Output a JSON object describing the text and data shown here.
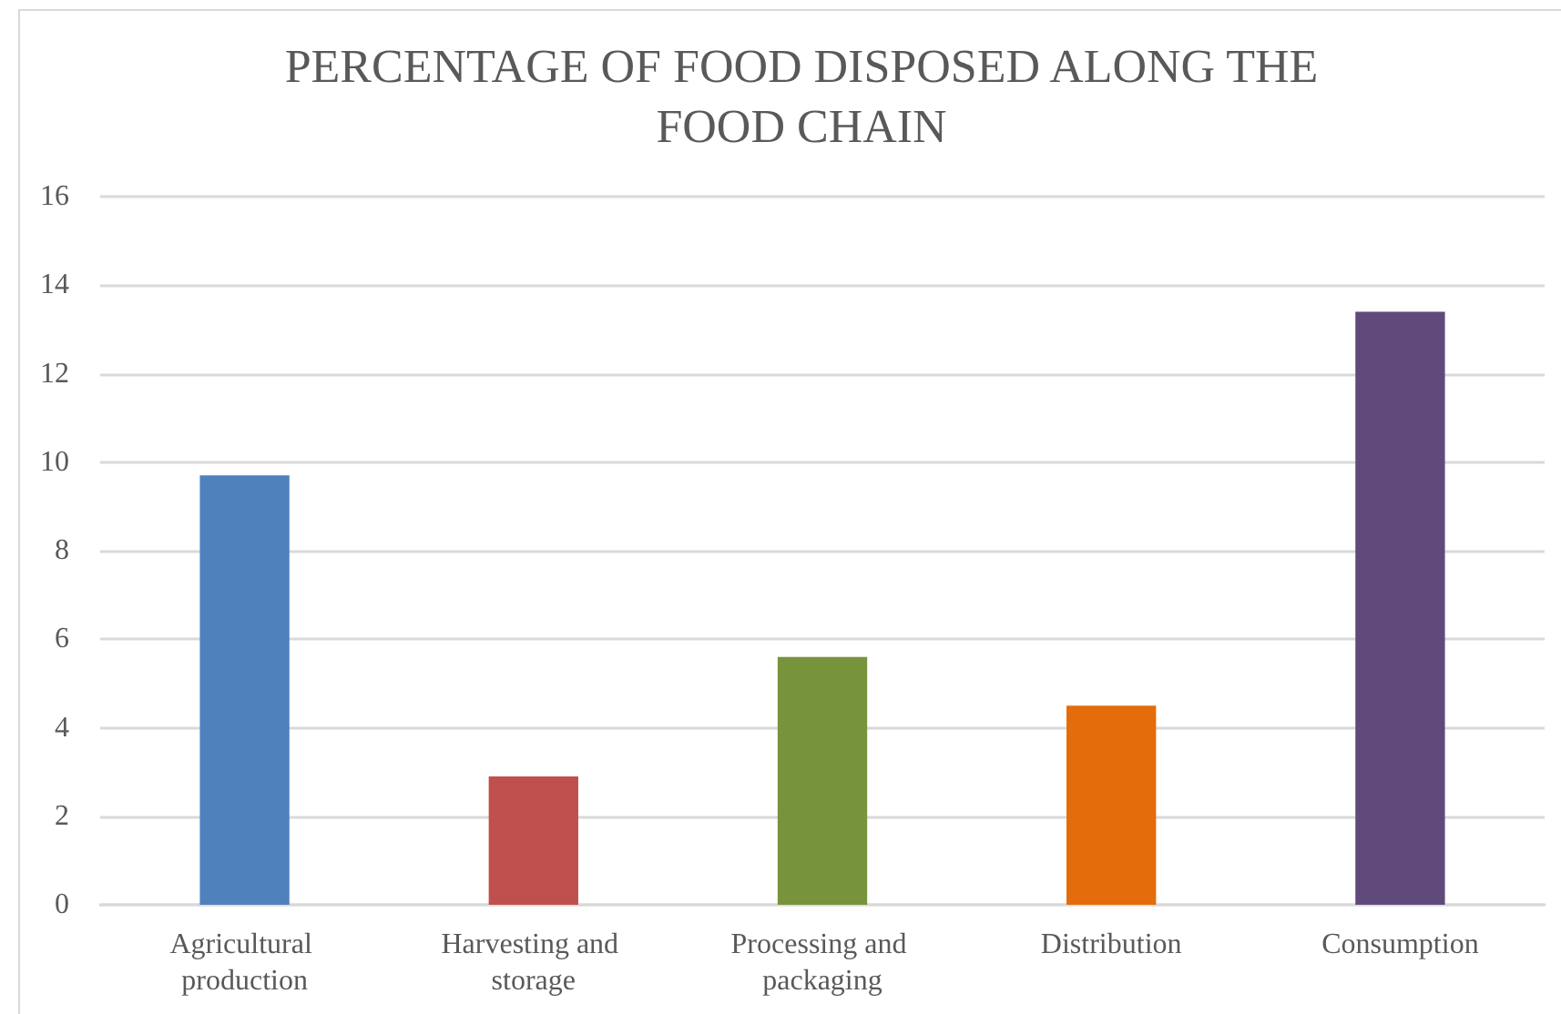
{
  "chart_data": {
    "type": "bar",
    "title": "PERCENTAGE OF FOOD DISPOSED ALONG THE FOOD CHAIN",
    "categories": [
      "Agricultural production",
      "Harvesting and storage",
      "Processing and packaging",
      "Distribution",
      "Consumption"
    ],
    "values": [
      9.7,
      2.9,
      5.6,
      4.5,
      13.4
    ],
    "colors": [
      "#4f81bd",
      "#c0504d",
      "#77933c",
      "#e46c0a",
      "#604a7b"
    ],
    "ylim": [
      0,
      16
    ],
    "yticks": [
      0,
      2,
      4,
      6,
      8,
      10,
      12,
      14,
      16
    ],
    "grid": "y"
  }
}
